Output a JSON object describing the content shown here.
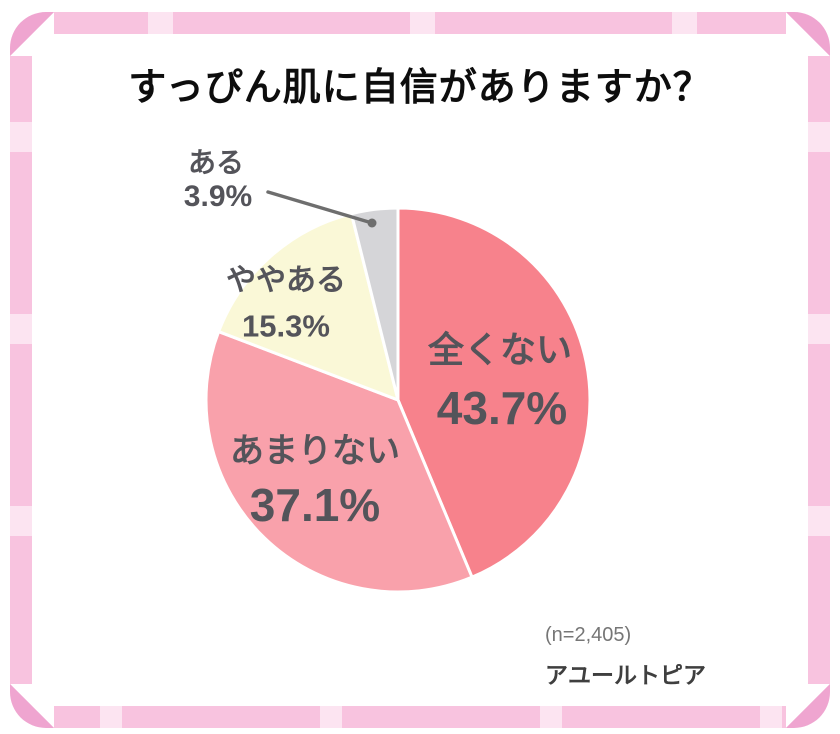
{
  "title": "すっぴん肌に自信がありますか？",
  "footer": {
    "sample_size": "(n=2,405)",
    "source": "アユールトピア"
  },
  "frame": {
    "tape_color": "#F8C3DF",
    "stripe_color": "#FCE4F1",
    "corner_color": "#EFA5D0"
  },
  "chart_data": {
    "type": "pie",
    "title": "すっぴん肌に自信がありますか？",
    "direction": "clockwise",
    "start_angle_deg": 0,
    "legend_position": "labels-on-slices",
    "n_text": "(n=2,405)",
    "slices": [
      {
        "label": "全くない",
        "value": 43.7,
        "display": "43.7%",
        "color": "#F7828C",
        "label_placement": "inside"
      },
      {
        "label": "あまりない",
        "value": 37.1,
        "display": "37.1%",
        "color": "#F9A1AB",
        "label_placement": "inside"
      },
      {
        "label": "ややある",
        "value": 15.3,
        "display": "15.3%",
        "color": "#FAF8D7",
        "label_placement": "inside"
      },
      {
        "label": "ある",
        "value": 3.9,
        "display": "3.9%",
        "color": "#D5D5D8",
        "label_placement": "outside-with-leader"
      }
    ],
    "slice_border_color": "#FFFFFF",
    "leader_line_color": "#6E6E6E",
    "label_text_color": "#54545A"
  }
}
